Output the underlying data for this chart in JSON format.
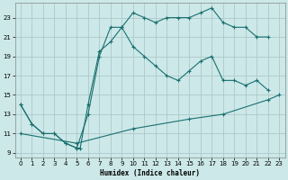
{
  "bg_color": "#cce8e8",
  "grid_color": "#aec8c8",
  "line_color": "#1a7070",
  "xlabel": "Humidex (Indice chaleur)",
  "xlim": [
    -0.5,
    23.5
  ],
  "ylim": [
    8.5,
    24.5
  ],
  "xticks": [
    0,
    1,
    2,
    3,
    4,
    5,
    6,
    7,
    8,
    9,
    10,
    11,
    12,
    13,
    14,
    15,
    16,
    17,
    18,
    19,
    20,
    21,
    22,
    23
  ],
  "yticks": [
    9,
    11,
    13,
    15,
    17,
    19,
    21,
    23
  ],
  "line_top_x": [
    0,
    1,
    2,
    3,
    4,
    5,
    6,
    7,
    8,
    9,
    10,
    11,
    12,
    13,
    14,
    15,
    16,
    17,
    18,
    19,
    20,
    21,
    22
  ],
  "line_top_y": [
    14,
    12,
    11,
    11,
    10,
    9.5,
    13,
    19,
    22,
    22,
    23.5,
    23,
    22.5,
    23,
    23,
    23,
    23.5,
    24,
    22.5,
    22,
    22,
    21,
    21
  ],
  "line_mid_x": [
    0,
    1,
    2,
    3,
    4,
    5,
    5.3,
    6,
    7,
    8,
    9,
    10,
    11,
    12,
    13,
    14,
    15,
    16,
    17,
    18,
    19,
    20,
    21,
    22
  ],
  "line_mid_y": [
    14,
    12,
    11,
    11,
    10,
    9.5,
    9.5,
    14,
    19.5,
    20.5,
    22,
    20,
    19,
    18,
    17,
    16.5,
    17.5,
    18.5,
    19,
    16.5,
    16.5,
    16,
    16.5,
    15.5
  ],
  "line_bot_x": [
    0,
    5,
    10,
    15,
    18,
    22,
    23
  ],
  "line_bot_y": [
    11,
    10,
    11.5,
    12.5,
    13,
    14.5,
    15
  ]
}
